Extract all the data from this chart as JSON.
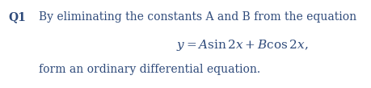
{
  "background_color": "#ffffff",
  "text_color": "#2e4a7a",
  "q_label": "Q1",
  "line1_text": "By eliminating the constants A and B from the equation",
  "equation": "$y = A\\sin 2x + B\\cos 2x,$",
  "line3_text": "form an ordinary differential equation.",
  "figwidth": 4.6,
  "figheight": 1.09,
  "dpi": 100
}
